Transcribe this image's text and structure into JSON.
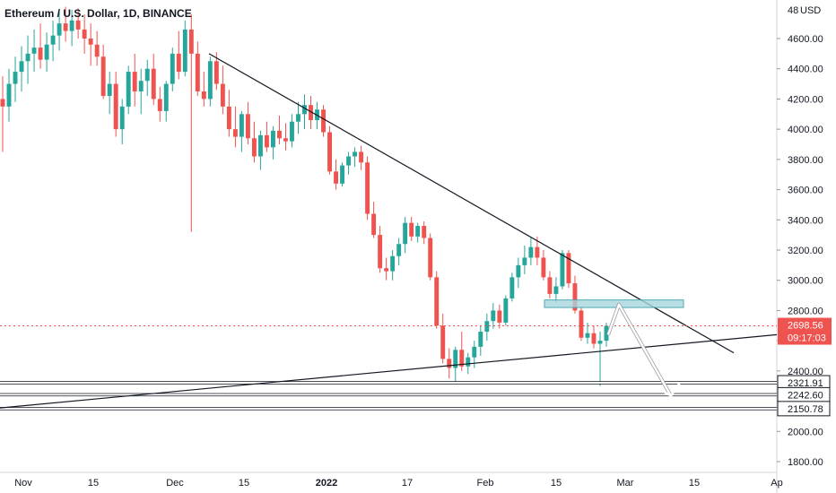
{
  "header": {
    "symbol": "Ethereum / U.S. Dollar, 1D, BINANCE"
  },
  "currency": "USD",
  "colors": {
    "up": "#26a69a",
    "down": "#ef5350",
    "trendline": "#131722",
    "support": "#ffffff",
    "zone_fill": "#a7d6dc",
    "zone_stroke": "#4fa9b5",
    "price_tag": "#ef5350",
    "arrow": "#ffffff"
  },
  "chart_data": {
    "type": "candlestick",
    "title": "Ethereum / U.S. Dollar, 1D, BINANCE",
    "ylim": [
      1750,
      4800
    ],
    "y_ticks": [
      "4600.00",
      "4400.00",
      "4200.00",
      "4000.00",
      "3800.00",
      "3600.00",
      "3400.00",
      "3200.00",
      "3000.00",
      "2800.00",
      "2600.00",
      "2400.00",
      "2200.00",
      "2000.00",
      "1800.00"
    ],
    "x_ticks": [
      "Nov",
      "15",
      "Dec",
      "15",
      "2022",
      "17",
      "Feb",
      "15",
      "Mar",
      "15",
      "Ap"
    ],
    "current_price": {
      "value": "2698.56",
      "countdown": "09:17:03"
    },
    "support_levels": [
      "2321.91",
      "2242.60",
      "2150.78"
    ],
    "ohlc": [
      [
        4200,
        4350,
        3850,
        4150
      ],
      [
        4150,
        4400,
        4050,
        4300
      ],
      [
        4300,
        4480,
        4180,
        4380
      ],
      [
        4380,
        4550,
        4250,
        4450
      ],
      [
        4450,
        4620,
        4300,
        4500
      ],
      [
        4500,
        4660,
        4380,
        4540
      ],
      [
        4540,
        4700,
        4400,
        4460
      ],
      [
        4460,
        4640,
        4380,
        4560
      ],
      [
        4560,
        4720,
        4450,
        4620
      ],
      [
        4620,
        4780,
        4520,
        4700
      ],
      [
        4700,
        4810,
        4580,
        4650
      ],
      [
        4650,
        4790,
        4550,
        4720
      ],
      [
        4720,
        4800,
        4600,
        4660
      ],
      [
        4660,
        4760,
        4500,
        4600
      ],
      [
        4600,
        4700,
        4420,
        4560
      ],
      [
        4560,
        4650,
        4420,
        4480
      ],
      [
        4480,
        4560,
        4200,
        4220
      ],
      [
        4220,
        4380,
        4100,
        4300
      ],
      [
        4300,
        4380,
        3950,
        4000
      ],
      [
        4000,
        4200,
        3900,
        4150
      ],
      [
        4150,
        4420,
        4100,
        4380
      ],
      [
        4380,
        4500,
        4150,
        4250
      ],
      [
        4250,
        4400,
        4100,
        4320
      ],
      [
        4320,
        4460,
        4220,
        4400
      ],
      [
        4400,
        4500,
        4160,
        4200
      ],
      [
        4200,
        4280,
        4050,
        4120
      ],
      [
        4120,
        4320,
        4050,
        4300
      ],
      [
        4300,
        4540,
        4250,
        4500
      ],
      [
        4500,
        4650,
        4330,
        4380
      ],
      [
        4380,
        4720,
        4350,
        4660
      ],
      [
        4660,
        4760,
        3320,
        4500
      ],
      [
        4500,
        4580,
        4220,
        4250
      ],
      [
        4250,
        4380,
        4150,
        4200
      ],
      [
        4200,
        4480,
        4150,
        4450
      ],
      [
        4450,
        4510,
        4260,
        4300
      ],
      [
        4300,
        4420,
        4100,
        4150
      ],
      [
        4150,
        4260,
        3950,
        4000
      ],
      [
        4000,
        4150,
        3880,
        3950
      ],
      [
        3950,
        4120,
        3850,
        4100
      ],
      [
        4100,
        4180,
        3900,
        3940
      ],
      [
        3940,
        4050,
        3780,
        3820
      ],
      [
        3820,
        3990,
        3730,
        3960
      ],
      [
        3960,
        4050,
        3850,
        3880
      ],
      [
        3880,
        4020,
        3800,
        3990
      ],
      [
        3990,
        4090,
        3900,
        3940
      ],
      [
        3940,
        4040,
        3860,
        3920
      ],
      [
        3920,
        4100,
        3880,
        4050
      ],
      [
        4050,
        4180,
        3970,
        4100
      ],
      [
        4100,
        4230,
        4000,
        4160
      ],
      [
        4160,
        4220,
        4000,
        4060
      ],
      [
        4060,
        4180,
        4000,
        4130
      ],
      [
        4130,
        4160,
        3950,
        3980
      ],
      [
        3980,
        4020,
        3700,
        3720
      ],
      [
        3720,
        3800,
        3600,
        3640
      ],
      [
        3640,
        3780,
        3620,
        3760
      ],
      [
        3760,
        3850,
        3700,
        3820
      ],
      [
        3820,
        3880,
        3750,
        3850
      ],
      [
        3850,
        3890,
        3730,
        3780
      ],
      [
        3780,
        3820,
        3400,
        3440
      ],
      [
        3440,
        3520,
        3280,
        3300
      ],
      [
        3300,
        3360,
        3050,
        3080
      ],
      [
        3080,
        3150,
        3000,
        3060
      ],
      [
        3060,
        3200,
        3000,
        3160
      ],
      [
        3160,
        3280,
        3100,
        3240
      ],
      [
        3240,
        3420,
        3180,
        3380
      ],
      [
        3380,
        3420,
        3260,
        3290
      ],
      [
        3290,
        3380,
        3250,
        3360
      ],
      [
        3360,
        3390,
        3240,
        3280
      ],
      [
        3280,
        3310,
        3000,
        3020
      ],
      [
        3020,
        3060,
        2680,
        2700
      ],
      [
        2700,
        2780,
        2450,
        2480
      ],
      [
        2480,
        2550,
        2350,
        2420
      ],
      [
        2420,
        2560,
        2320,
        2540
      ],
      [
        2540,
        2660,
        2400,
        2430
      ],
      [
        2430,
        2520,
        2380,
        2490
      ],
      [
        2490,
        2600,
        2420,
        2560
      ],
      [
        2560,
        2700,
        2500,
        2660
      ],
      [
        2660,
        2780,
        2600,
        2730
      ],
      [
        2730,
        2850,
        2680,
        2800
      ],
      [
        2800,
        2840,
        2680,
        2720
      ],
      [
        2720,
        2900,
        2700,
        2880
      ],
      [
        2880,
        3050,
        2860,
        3020
      ],
      [
        3020,
        3150,
        2950,
        3100
      ],
      [
        3100,
        3230,
        3040,
        3150
      ],
      [
        3150,
        3280,
        3100,
        3220
      ],
      [
        3220,
        3290,
        3100,
        3150
      ],
      [
        3150,
        3200,
        3000,
        3020
      ],
      [
        3020,
        3060,
        2880,
        2910
      ],
      [
        2910,
        3020,
        2850,
        2960
      ],
      [
        2960,
        3200,
        2940,
        3180
      ],
      [
        3180,
        3200,
        2950,
        2980
      ],
      [
        2980,
        3030,
        2780,
        2800
      ],
      [
        2800,
        2820,
        2600,
        2620
      ],
      [
        2620,
        2720,
        2580,
        2650
      ],
      [
        2650,
        2700,
        2550,
        2580
      ],
      [
        2580,
        2660,
        2300,
        2600
      ],
      [
        2600,
        2720,
        2560,
        2698.56
      ]
    ]
  }
}
